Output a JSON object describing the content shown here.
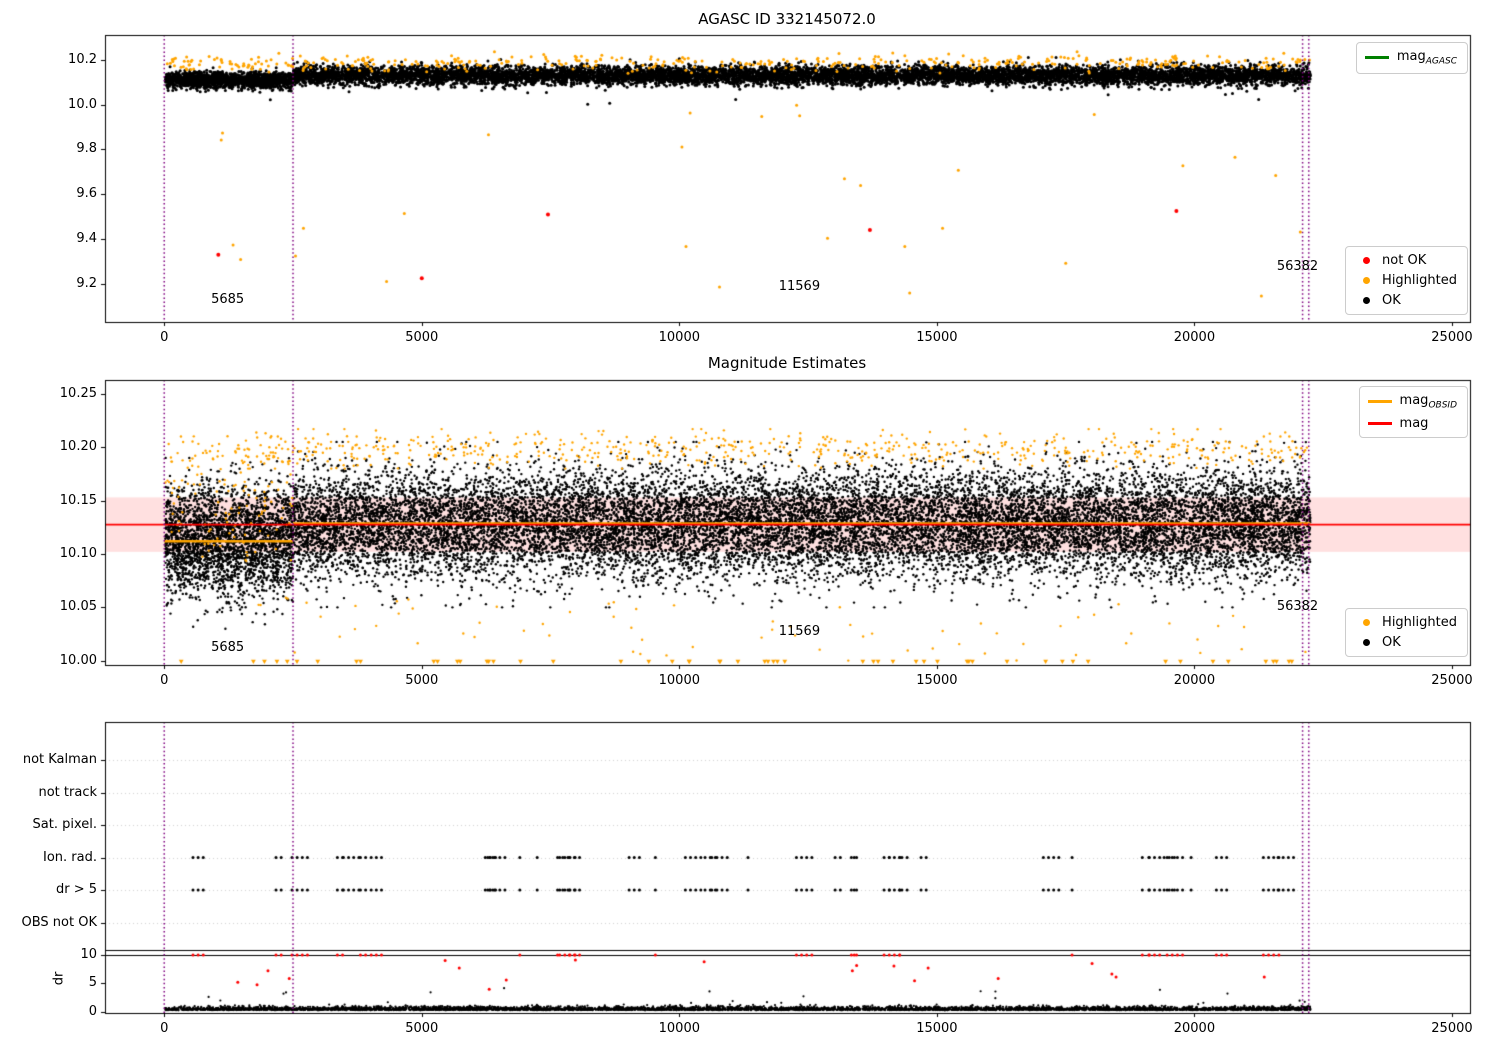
{
  "figure": {
    "background": "#ffffff"
  },
  "chart_data": [
    {
      "id": "mag_vs_time",
      "type": "scatter",
      "title": "AGASC ID 332145072.0",
      "xlim": [
        -1150,
        25350
      ],
      "ylim": [
        9.03,
        10.31
      ],
      "xticks": [
        0,
        5000,
        10000,
        15000,
        20000,
        25000
      ],
      "xtick_labels": [
        "0",
        "5000",
        "10000",
        "15000",
        "20000",
        "25000"
      ],
      "yticks": [
        10.2,
        10.0,
        9.8,
        9.6,
        9.4,
        9.2
      ],
      "ytick_labels": [
        "10.2",
        "10.0",
        "9.8",
        "9.6",
        "9.4",
        "9.2"
      ],
      "vline_color": "#800080",
      "vlines": [
        0,
        2500,
        22100,
        22220
      ],
      "annotations": [
        {
          "text": "5685",
          "x": 910,
          "y": 9.128
        },
        {
          "text": "11569",
          "x": 11930,
          "y": 9.186
        },
        {
          "text": "56382",
          "x": 21600,
          "y": 9.275
        }
      ],
      "legend_top": [
        {
          "marker": "line",
          "color": "#008000",
          "label": "mag",
          "sub": "AGASC"
        }
      ],
      "legend_bottom": [
        {
          "marker": "dot",
          "color": "#ff0000",
          "label": "not OK"
        },
        {
          "marker": "dot",
          "color": "#ffa500",
          "label": "Highlighted"
        },
        {
          "marker": "dot",
          "color": "#000000",
          "label": "OK"
        }
      ],
      "clusters": [
        {
          "name": "ok-obsid-5685",
          "color": "#000000",
          "marker": "dot",
          "size": 1.5,
          "seed": 101,
          "n": 1500,
          "xrange": [
            20,
            2500
          ],
          "y": {
            "dist": "normal",
            "mean": 10.108,
            "sd": 0.018,
            "clip": [
              10.02,
              10.2
            ]
          }
        },
        {
          "name": "ok-main",
          "color": "#000000",
          "marker": "dot",
          "size": 1.5,
          "seed": 102,
          "n": 9000,
          "xrange": [
            2500,
            22250
          ],
          "y": {
            "dist": "normal",
            "mean": 10.13,
            "sd": 0.021,
            "clip": [
              9.99,
              10.22
            ]
          }
        },
        {
          "name": "ok-low-outliers",
          "color": "#000000",
          "marker": "dot",
          "size": 1.5,
          "seed": 105,
          "n": 10,
          "xrange": [
            500,
            22250
          ],
          "y": {
            "dist": "uniform",
            "range": [
              10.0,
              10.07
            ]
          }
        },
        {
          "name": "highlighted-band",
          "color": "#ffa500",
          "marker": "dot",
          "size": 1.5,
          "seed": 103,
          "n": 430,
          "xrange": [
            20,
            22250
          ],
          "y": {
            "dist": "normal",
            "mean": 10.185,
            "sd": 0.018,
            "clip": [
              10.1,
              10.235
            ]
          }
        },
        {
          "name": "highlighted-outliers",
          "color": "#ffa500",
          "marker": "dot",
          "size": 1.5,
          "seed": 104,
          "n": 30,
          "xrange": [
            300,
            22250
          ],
          "y": {
            "dist": "uniform",
            "range": [
              9.1,
              10.0
            ]
          }
        }
      ],
      "points": [
        {
          "color": "#ff0000",
          "x": 1050,
          "y": 9.33
        },
        {
          "color": "#ff0000",
          "x": 5000,
          "y": 9.225
        },
        {
          "color": "#ff0000",
          "x": 7450,
          "y": 9.51
        },
        {
          "color": "#ff0000",
          "x": 13700,
          "y": 9.44
        },
        {
          "color": "#ff0000",
          "x": 19650,
          "y": 9.525
        }
      ]
    },
    {
      "id": "magnitude_estimates",
      "type": "scatter",
      "title": "Magnitude Estimates",
      "xlim": [
        -1150,
        25350
      ],
      "ylim": [
        9.996,
        10.263
      ],
      "xticks": [
        0,
        5000,
        10000,
        15000,
        20000,
        25000
      ],
      "xtick_labels": [
        "0",
        "5000",
        "10000",
        "15000",
        "20000",
        "25000"
      ],
      "yticks": [
        10.25,
        10.2,
        10.15,
        10.1,
        10.05,
        10.0
      ],
      "ytick_labels": [
        "10.25",
        "10.20",
        "10.15",
        "10.10",
        "10.05",
        "10.00"
      ],
      "vline_color": "#800080",
      "vlines": [
        0,
        2500,
        22100,
        22220
      ],
      "band": {
        "y0": 10.102,
        "y1": 10.153,
        "color": "rgba(255,0,0,0.12)"
      },
      "hline_segments": [
        {
          "name": "mag-obsid-5685",
          "y": 10.112,
          "x0": 0,
          "x1": 2500,
          "color": "#ffa500",
          "width": 2.5
        },
        {
          "name": "mag-obsid-main",
          "y": 10.1285,
          "x0": 2500,
          "x1": 22250,
          "color": "#ffa500",
          "width": 2.5
        },
        {
          "name": "mag",
          "y": 10.1275,
          "x0": -1150,
          "x1": 25350,
          "color": "#ff0000",
          "width": 1.8
        }
      ],
      "annotations": [
        {
          "text": "5685",
          "x": 910,
          "y": 10.012
        },
        {
          "text": "11569",
          "x": 11930,
          "y": 10.027
        },
        {
          "text": "56382",
          "x": 21600,
          "y": 10.05
        }
      ],
      "legend_top": [
        {
          "marker": "line",
          "color": "#ffa500",
          "label": "mag",
          "sub": "OBSID"
        },
        {
          "marker": "line",
          "color": "#ff0000",
          "label": "mag",
          "sub": ""
        }
      ],
      "legend_bottom": [
        {
          "marker": "dot",
          "color": "#ffa500",
          "label": "Highlighted"
        },
        {
          "marker": "dot",
          "color": "#000000",
          "label": "OK"
        }
      ],
      "clusters": [
        {
          "name": "ok-obsid-5685",
          "color": "#000000",
          "marker": "dot",
          "size": 1.2,
          "seed": 201,
          "n": 2800,
          "xrange": [
            20,
            2500
          ],
          "y": {
            "dist": "normal",
            "mean": 10.112,
            "sd": 0.026,
            "clip": [
              10.03,
              10.19
            ]
          }
        },
        {
          "name": "ok-main",
          "color": "#000000",
          "marker": "dot",
          "size": 1.2,
          "seed": 202,
          "n": 16000,
          "xrange": [
            2500,
            22250
          ],
          "y": {
            "dist": "normal",
            "mean": 10.128,
            "sd": 0.025,
            "clip": [
              10.05,
              10.205
            ]
          }
        },
        {
          "name": "highlighted-obsid-5685",
          "color": "#ffa500",
          "marker": "dot",
          "size": 1.2,
          "seed": 206,
          "n": 120,
          "xrange": [
            20,
            2500
          ],
          "y": {
            "dist": "normal",
            "mean": 10.15,
            "sd": 0.03,
            "clip": [
              10.0,
              10.21
            ]
          }
        },
        {
          "name": "highlighted-top",
          "color": "#ffa500",
          "marker": "dot",
          "size": 1.2,
          "seed": 203,
          "n": 650,
          "xrange": [
            20,
            22250
          ],
          "y": {
            "dist": "normal",
            "mean": 10.198,
            "sd": 0.009,
            "clip": [
              10.18,
              10.217
            ]
          }
        },
        {
          "name": "highlighted-low",
          "color": "#ffa500",
          "marker": "dot",
          "size": 1.2,
          "seed": 204,
          "n": 70,
          "xrange": [
            20,
            22250
          ],
          "y": {
            "dist": "uniform",
            "range": [
              10.0,
              10.06
            ]
          }
        },
        {
          "name": "clipped-below",
          "color": "#ffa500",
          "marker": "triangle-down",
          "size": 2.4,
          "seed": 205,
          "n": 55,
          "xrange": [
            300,
            22250
          ],
          "y": {
            "dist": "const",
            "value": 9.999
          }
        }
      ],
      "points": []
    },
    {
      "id": "flags",
      "type": "scatter",
      "xlim": [
        -1150,
        25350
      ],
      "categories": [
        "not Kalman",
        "not track",
        "Sat. pixel.",
        "Ion. rad.",
        "dr > 5",
        "OBS not OK"
      ],
      "vline_color": "#800080",
      "vlines": [
        0,
        2500,
        22100,
        22220
      ],
      "clusters": [
        {
          "name": "ion-rad-flags",
          "color": "#000000",
          "marker": "dot",
          "size": 1.5,
          "seed": 301,
          "n": 105,
          "xgen": "runs",
          "xrange": [
            400,
            22200
          ],
          "row": 3,
          "y": {
            "dist": "const",
            "value": 0
          }
        },
        {
          "name": "dr-gt-5-flags",
          "color": "#000000",
          "marker": "dot",
          "size": 1.5,
          "seed": 301,
          "n": 105,
          "xgen": "runs",
          "xrange": [
            400,
            22200
          ],
          "row": 4,
          "y": {
            "dist": "const",
            "value": 0
          }
        }
      ]
    },
    {
      "id": "dr",
      "type": "scatter",
      "ylabel": "dr",
      "xlim": [
        -1150,
        25350
      ],
      "ylim": [
        -0.25,
        10.9
      ],
      "xticks": [
        0,
        5000,
        10000,
        15000,
        20000,
        25000
      ],
      "xtick_labels": [
        "0",
        "5000",
        "10000",
        "15000",
        "20000",
        "25000"
      ],
      "yticks": [
        0,
        5,
        10
      ],
      "ytick_labels": [
        "0",
        "5",
        "10"
      ],
      "vline_color": "#800080",
      "vlines": [
        0,
        2500,
        22100,
        22220
      ],
      "hlines": [
        {
          "y": 10,
          "color": "#000000",
          "width": 1.2
        }
      ],
      "clusters": [
        {
          "name": "dr-ok",
          "color": "#000000",
          "marker": "dot",
          "size": 1.1,
          "seed": 401,
          "n": 5200,
          "xrange": [
            20,
            22250
          ],
          "y": {
            "dist": "absnormal",
            "mean": 0.25,
            "sd": 0.3,
            "clip": [
              0.05,
              3.0
            ]
          }
        },
        {
          "name": "dr-moderate",
          "color": "#000000",
          "marker": "dot",
          "size": 1.1,
          "seed": 405,
          "n": 18,
          "xrange": [
            500,
            22250
          ],
          "y": {
            "dist": "uniform",
            "range": [
              1.5,
              4.2
            ]
          }
        },
        {
          "name": "dr-clipped-high",
          "color": "#ff0000",
          "marker": "dot",
          "size": 1.5,
          "seed": 301,
          "n": 55,
          "xgen": "runs",
          "xrange": [
            400,
            22200
          ],
          "y": {
            "dist": "const",
            "value": 10
          }
        },
        {
          "name": "dr-high",
          "color": "#ff0000",
          "marker": "dot",
          "size": 1.5,
          "seed": 403,
          "n": 20,
          "xrange": [
            400,
            22250
          ],
          "y": {
            "dist": "uniform",
            "range": [
              3.5,
              9.2
            ]
          }
        }
      ]
    }
  ]
}
